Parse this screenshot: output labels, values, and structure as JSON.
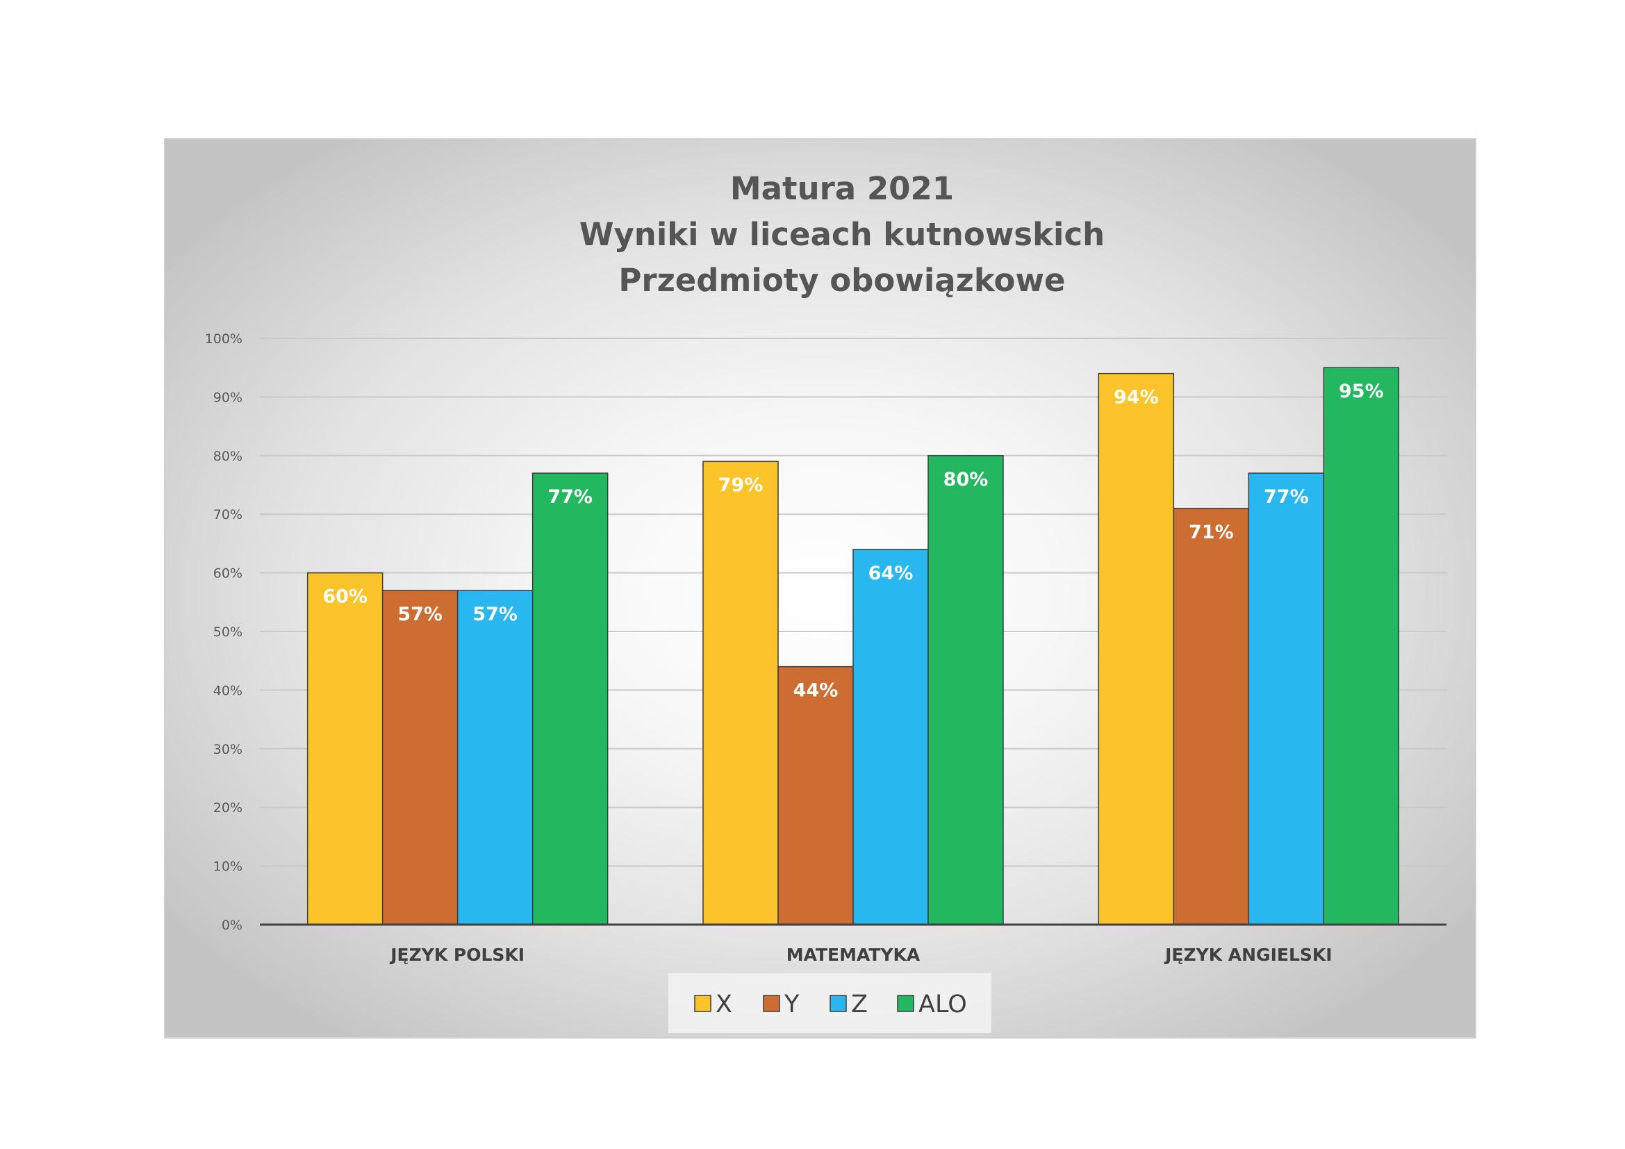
{
  "colors": {
    "X": "#fbc42b",
    "Y": "#cd6d32",
    "Z": "#29b7ef",
    "ALO": "#23b860",
    "gridline": "#c9c9c9",
    "axis": "#404040",
    "bar_stroke": "#3c3c3c"
  },
  "chart_data": {
    "type": "bar",
    "title": [
      "Matura 2021",
      "Wyniki w liceach kutnowskich",
      "Przedmioty obowiązkowe"
    ],
    "categories": [
      "JĘZYK POLSKI",
      "MATEMATYKA",
      "JĘZYK ANGIELSKI"
    ],
    "series": [
      {
        "name": "X",
        "values": [
          60,
          79,
          94
        ],
        "labels": [
          "60%",
          "79%",
          "94%"
        ]
      },
      {
        "name": "Y",
        "values": [
          57,
          44,
          71
        ],
        "labels": [
          "57%",
          "44%",
          "71%"
        ]
      },
      {
        "name": "Z",
        "values": [
          57,
          64,
          77
        ],
        "labels": [
          "57%",
          "64%",
          "77%"
        ]
      },
      {
        "name": "ALO",
        "values": [
          77,
          80,
          95
        ],
        "labels": [
          "77%",
          "80%",
          "95%"
        ]
      }
    ],
    "yticks": [
      "0%",
      "10%",
      "20%",
      "30%",
      "40%",
      "50%",
      "60%",
      "70%",
      "80%",
      "90%",
      "100%"
    ],
    "ylim": [
      0,
      100
    ],
    "unit": "%",
    "grid": true,
    "legend_position": "bottom",
    "xlabel": "",
    "ylabel": ""
  }
}
